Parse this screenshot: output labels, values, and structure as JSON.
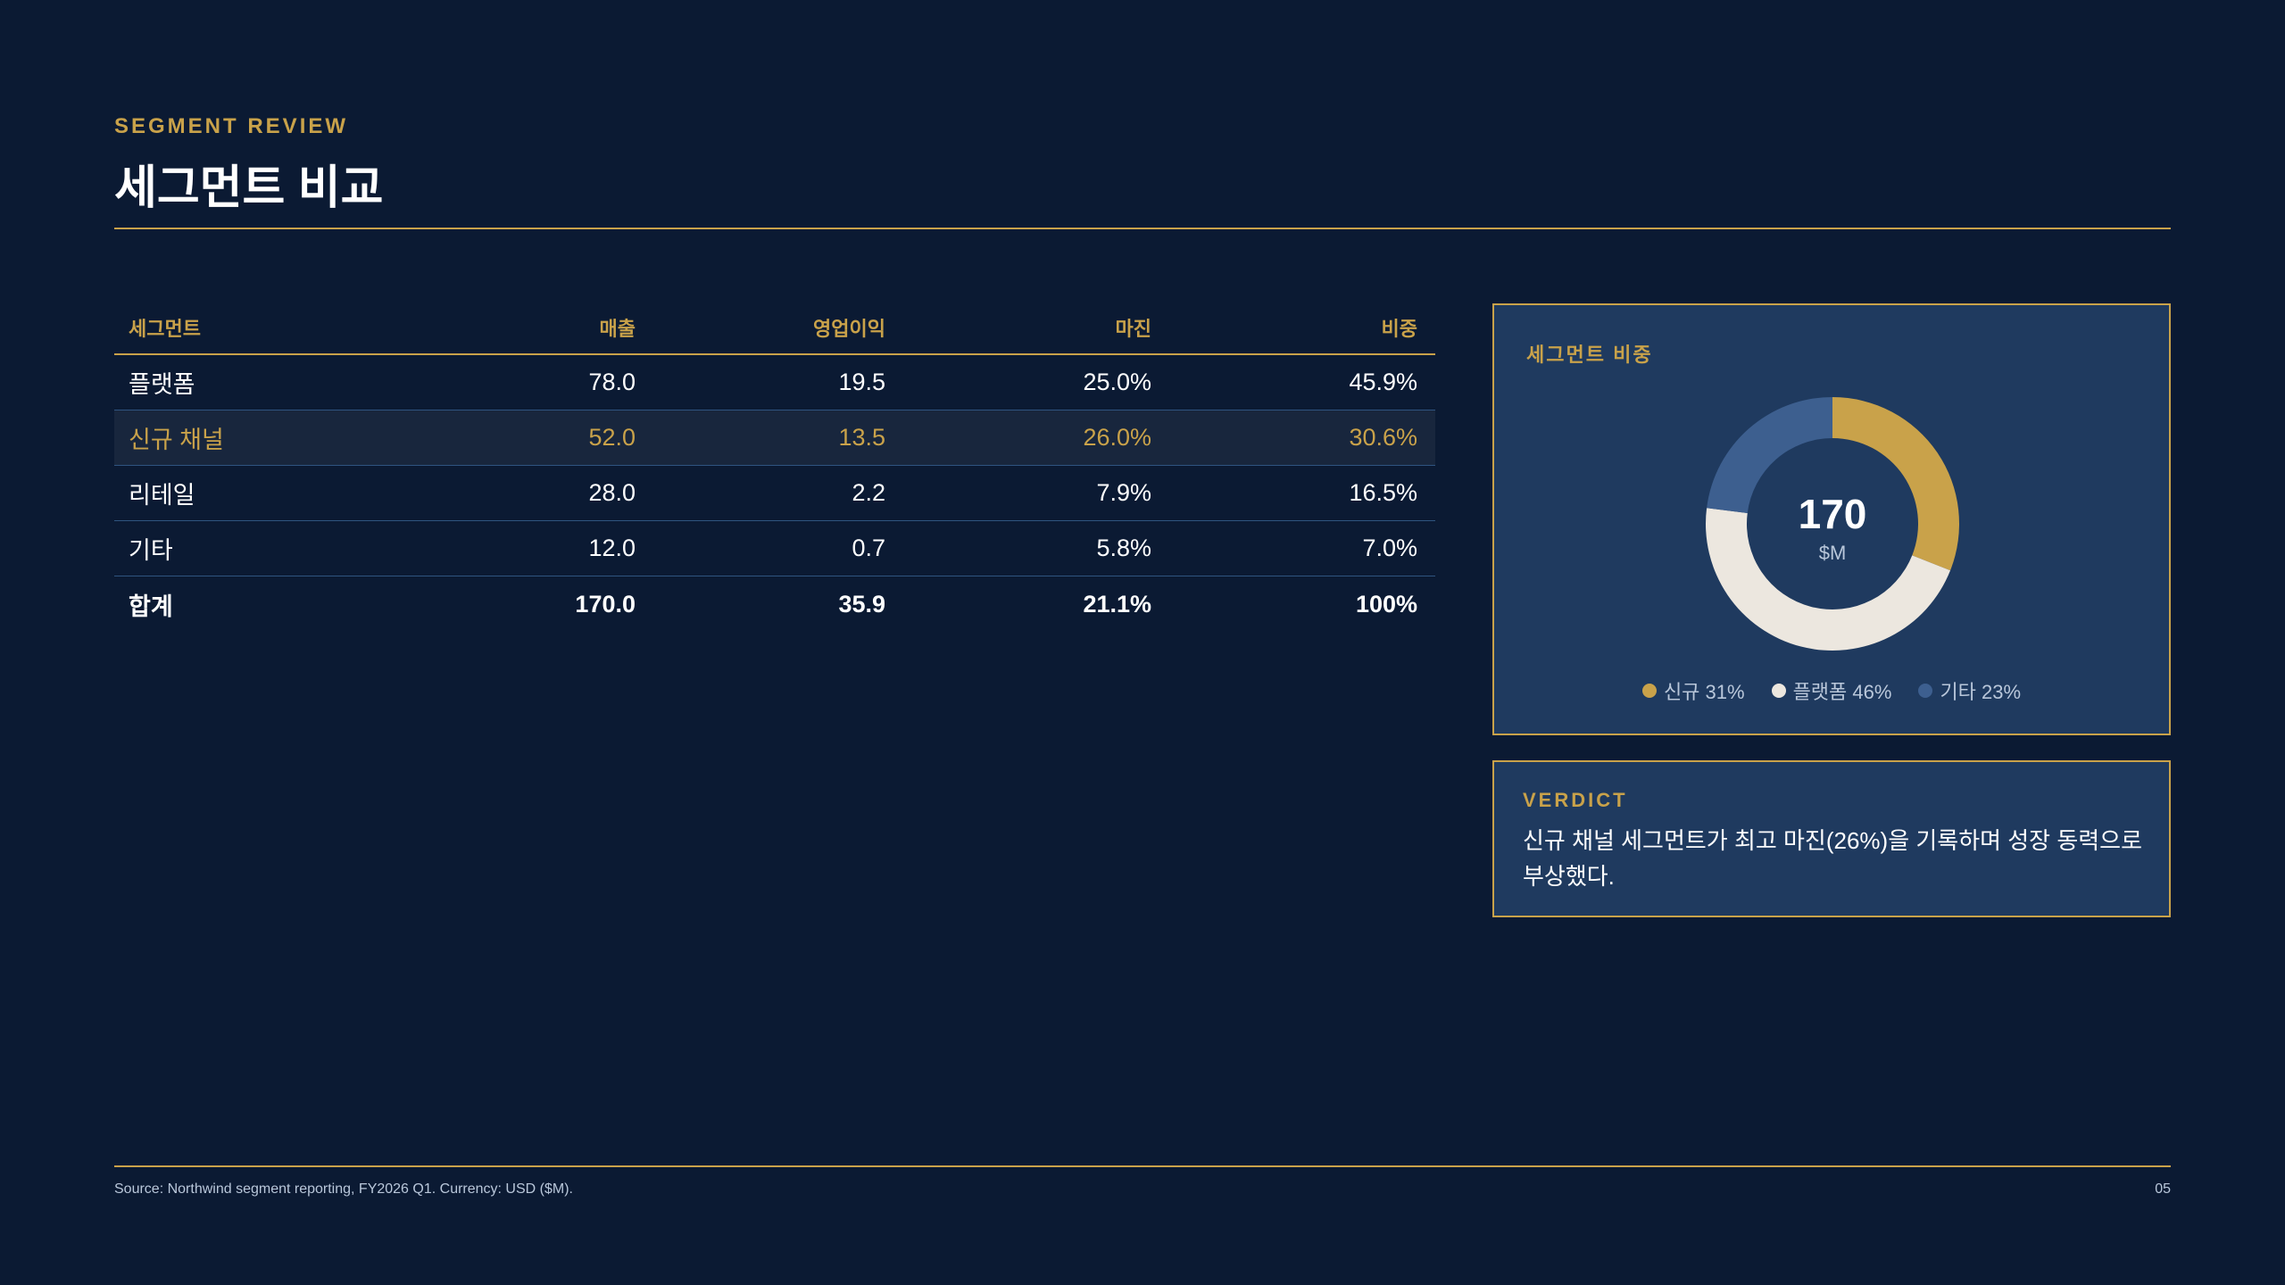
{
  "header": {
    "eyebrow": "SEGMENT REVIEW",
    "title": "세그먼트 비교"
  },
  "table": {
    "columns": [
      "세그먼트",
      "매출",
      "영업이익",
      "마진",
      "비중"
    ],
    "rows": [
      [
        "플랫폼",
        "78.0",
        "19.5",
        "25.0%",
        "45.9%"
      ],
      [
        "신규 채널",
        "52.0",
        "13.5",
        "26.0%",
        "30.6%"
      ],
      [
        "리테일",
        "28.0",
        "2.2",
        "7.9%",
        "16.5%"
      ],
      [
        "기타",
        "12.0",
        "0.7",
        "5.8%",
        "7.0%"
      ]
    ],
    "total": [
      "합계",
      "170.0",
      "35.9",
      "21.1%",
      "100%"
    ],
    "highlight_row_index": 1
  },
  "share_card": {
    "title": "세그먼트 비중",
    "center_value": "170",
    "center_unit": "$M",
    "legend": [
      {
        "label": "신규 31%",
        "color": "#c9a24a"
      },
      {
        "label": "플랫폼 46%",
        "color": "#ece7df"
      },
      {
        "label": "기타 23%",
        "color": "#3d5f8f"
      }
    ]
  },
  "chart_data": {
    "type": "pie",
    "categories": [
      "신규",
      "플랫폼",
      "기타"
    ],
    "values": [
      31,
      46,
      23
    ],
    "colors": [
      "#c9a24a",
      "#ece7df",
      "#3d5f8f"
    ],
    "title": "세그먼트 비중",
    "center_label": "170",
    "center_unit": "$M"
  },
  "verdict": {
    "label": "VERDICT",
    "text": "신규 채널 세그먼트가 최고 마진(26%)을 기록하며 성장 동력으로 부상했다."
  },
  "footer": {
    "source": "Source: Northwind segment reporting, FY2026 Q1. Currency: USD ($M).",
    "page": "05"
  },
  "colors": {
    "background": "#0b1a33",
    "accent": "#c9a24a",
    "card": "#1f3a5f"
  }
}
